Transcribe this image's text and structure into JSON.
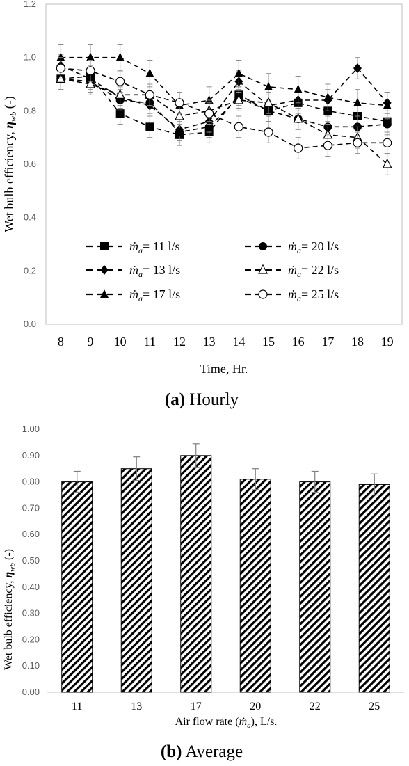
{
  "chart_data": [
    {
      "type": "line",
      "panel": "(a)",
      "caption": "Hourly",
      "xlabel": "Time, Hr.",
      "ylabel_main": "Wet bulb efficiency, ",
      "ylabel_symbol": "η",
      "ylabel_sub": "wb",
      "ylabel_tail": " (-)",
      "x": [
        8,
        9,
        10,
        11,
        12,
        13,
        14,
        15,
        16,
        17,
        18,
        19
      ],
      "xticks": [
        "8",
        "9",
        "10",
        "11",
        "12",
        "13",
        "14",
        "15",
        "16",
        "17",
        "18",
        "19"
      ],
      "ylim": [
        0,
        1.2
      ],
      "yticks": [
        "0.0",
        "0.2",
        "0.4",
        "0.6",
        "0.8",
        "1.0",
        "1.2"
      ],
      "grid": false,
      "legend_position": "lower-center",
      "legend_symbol": "ṁ",
      "legend_sub": "a",
      "series": [
        {
          "name": "= 11 l/s",
          "marker": "square",
          "values": [
            0.92,
            0.93,
            0.79,
            0.74,
            0.71,
            0.72,
            0.86,
            0.8,
            0.83,
            0.8,
            0.78,
            0.76
          ],
          "err": 0.04
        },
        {
          "name": "= 13 l/s",
          "marker": "diamond",
          "values": [
            0.97,
            0.92,
            0.85,
            0.82,
            0.73,
            0.76,
            0.91,
            0.82,
            0.84,
            0.84,
            0.96,
            0.83
          ],
          "err": 0.04
        },
        {
          "name": "= 17 l/s",
          "marker": "triangle",
          "values": [
            1.0,
            1.0,
            1.0,
            0.94,
            0.82,
            0.84,
            0.94,
            0.89,
            0.88,
            0.85,
            0.83,
            0.82
          ],
          "err": 0.05
        },
        {
          "name": "= 20 l/s",
          "marker": "circle",
          "values": [
            0.92,
            0.91,
            0.84,
            0.83,
            0.72,
            0.74,
            0.85,
            0.8,
            0.77,
            0.74,
            0.74,
            0.75
          ],
          "err": 0.04
        },
        {
          "name": "= 22 l/s",
          "marker": "triangle-open",
          "values": [
            0.92,
            0.9,
            0.86,
            0.86,
            0.78,
            0.8,
            0.84,
            0.83,
            0.77,
            0.71,
            0.7,
            0.6
          ],
          "err": 0.04
        },
        {
          "name": "= 25 l/s",
          "marker": "circle-open",
          "values": [
            0.96,
            0.95,
            0.91,
            0.86,
            0.83,
            0.79,
            0.74,
            0.72,
            0.66,
            0.67,
            0.68,
            0.68
          ],
          "err": 0.04
        }
      ]
    },
    {
      "type": "bar",
      "panel": "(b)",
      "caption": "Average",
      "xlabel_pre": "Air flow rate (",
      "xlabel_symbol": "ṁ",
      "xlabel_sub": "a",
      "xlabel_post": "), L/s.",
      "ylabel_main": "Wet bulb efficiency, ",
      "ylabel_symbol": "η",
      "ylabel_sub": "wb",
      "ylabel_tail": " (-)",
      "categories": [
        "11",
        "13",
        "17",
        "20",
        "22",
        "25"
      ],
      "values": [
        0.8,
        0.85,
        0.9,
        0.81,
        0.8,
        0.79
      ],
      "errors": [
        0.04,
        0.045,
        0.045,
        0.04,
        0.04,
        0.04
      ],
      "ylim": [
        0,
        1.0
      ],
      "yticks": [
        "0.00",
        "0.10",
        "0.20",
        "0.30",
        "0.40",
        "0.50",
        "0.60",
        "0.70",
        "0.80",
        "0.90",
        "1.00"
      ],
      "grid": false,
      "fill": "diagonal-hatch"
    }
  ]
}
